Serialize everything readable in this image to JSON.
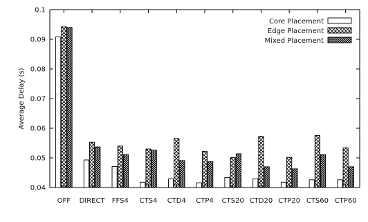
{
  "chart_data": {
    "type": "bar",
    "title": "",
    "xlabel": "",
    "ylabel": "Average Delay (s)",
    "ylim": [
      0.04,
      0.1
    ],
    "yticks": [
      0.04,
      0.05,
      0.06,
      0.07,
      0.08,
      0.09,
      0.1
    ],
    "ytick_labels": [
      "0.04",
      "0.05",
      "0.06",
      "0.07",
      "0.08",
      "0.09",
      "0.1"
    ],
    "grid": false,
    "legend_position": "top-right",
    "categories": [
      "OFF",
      "DIRECT",
      "FFS4",
      "CTS4",
      "CTD4",
      "CTP4",
      "CTS20",
      "CTD20",
      "CTP20",
      "CTS60",
      "CTP60"
    ],
    "series": [
      {
        "name": "Core Placement",
        "pattern": "none",
        "values": [
          0.0908,
          0.0493,
          0.0471,
          0.0418,
          0.0429,
          0.0416,
          0.0434,
          0.0429,
          0.0418,
          0.0426,
          0.0426
        ]
      },
      {
        "name": "Edge Placement",
        "pattern": "cross",
        "values": [
          0.0942,
          0.0553,
          0.054,
          0.053,
          0.0565,
          0.0522,
          0.0501,
          0.0573,
          0.0502,
          0.0576,
          0.0534
        ]
      },
      {
        "name": "Mixed Placement",
        "pattern": "crosshatch",
        "values": [
          0.094,
          0.0537,
          0.0511,
          0.0526,
          0.0491,
          0.0487,
          0.0514,
          0.047,
          0.0463,
          0.0511,
          0.047
        ]
      }
    ]
  }
}
